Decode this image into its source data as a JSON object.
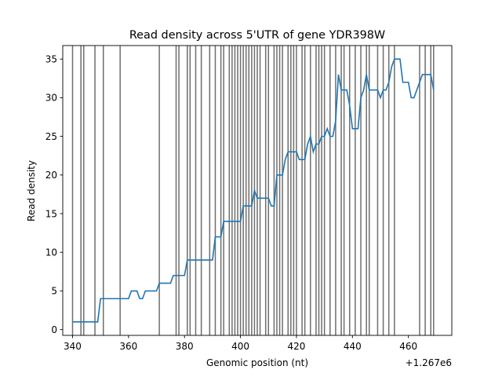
{
  "chart_data": {
    "type": "line",
    "title": "Read density across 5'UTR of gene YDR398W",
    "xlabel": "Genomic position (nt)",
    "ylabel": "Read density",
    "x_offset_label": "+1.267e6",
    "xlim": [
      336.5,
      475.5
    ],
    "ylim": [
      -0.75,
      36.75
    ],
    "xticks": [
      340,
      360,
      380,
      400,
      420,
      440,
      460
    ],
    "yticks": [
      0,
      5,
      10,
      15,
      20,
      25,
      30,
      35
    ],
    "grid": false,
    "line_color": "#1f77b4",
    "vline_color": "#6e6e6e",
    "vlines": [
      340,
      343,
      344,
      348,
      351,
      357,
      371,
      377,
      378,
      381,
      382,
      384,
      386,
      389,
      391,
      393,
      394,
      396,
      397,
      398,
      399,
      400,
      401,
      402,
      403,
      404,
      405,
      406,
      407,
      409,
      410,
      412,
      413,
      414,
      415,
      417,
      418,
      419,
      420,
      422,
      423,
      425,
      427,
      428,
      429,
      430,
      432,
      434,
      436,
      437,
      439,
      441,
      443,
      445,
      446,
      449,
      451,
      453,
      455,
      464,
      466,
      468,
      469
    ],
    "series": [
      {
        "x": [
          340,
          341,
          342,
          343,
          344,
          345,
          346,
          347,
          348,
          349,
          350,
          351,
          352,
          353,
          354,
          355,
          356,
          357,
          358,
          359,
          360,
          361,
          362,
          363,
          364,
          365,
          366,
          367,
          368,
          369,
          370,
          371,
          372,
          373,
          374,
          375,
          376,
          377,
          378,
          379,
          380,
          381,
          382,
          383,
          384,
          385,
          386,
          387,
          388,
          389,
          390,
          391,
          392,
          393,
          394,
          395,
          396,
          397,
          398,
          399,
          400,
          401,
          402,
          403,
          404,
          405,
          406,
          407,
          408,
          409,
          410,
          411,
          412,
          413,
          414,
          415,
          416,
          417,
          418,
          419,
          420,
          421,
          422,
          423,
          424,
          425,
          426,
          427,
          428,
          429,
          430,
          431,
          432,
          433,
          434,
          435,
          436,
          437,
          438,
          439,
          440,
          441,
          442,
          443,
          444,
          445,
          446,
          447,
          448,
          449,
          450,
          451,
          452,
          453,
          454,
          455,
          456,
          457,
          458,
          459,
          460,
          461,
          462,
          463,
          464,
          465,
          466,
          467,
          468,
          469
        ],
        "y": [
          1,
          1,
          1,
          1,
          1,
          1,
          1,
          1,
          1,
          1,
          4,
          4,
          4,
          4,
          4,
          4,
          4,
          4,
          4,
          4,
          4,
          5,
          5,
          5,
          4,
          4,
          5,
          5,
          5,
          5,
          5,
          6,
          6,
          6,
          6,
          6,
          7,
          7,
          7,
          7,
          7,
          9,
          9,
          9,
          9,
          9,
          9,
          9,
          9,
          9,
          9,
          12,
          12,
          12,
          14,
          14,
          14,
          14,
          14,
          14,
          14,
          16,
          16,
          16,
          16,
          18,
          17,
          17,
          17,
          17,
          17,
          16,
          16,
          20,
          20,
          20,
          22,
          23,
          23,
          23,
          23,
          22,
          22,
          22,
          24,
          25,
          23,
          24,
          24,
          25,
          25,
          26,
          25,
          25,
          27,
          33,
          31,
          31,
          31,
          29,
          26,
          26,
          26,
          30,
          31,
          33,
          31,
          31,
          31,
          31,
          30,
          31,
          31,
          32,
          34,
          35,
          35,
          35,
          32,
          32,
          32,
          30,
          30,
          31,
          32,
          33,
          33,
          33,
          33,
          31
        ]
      }
    ]
  }
}
